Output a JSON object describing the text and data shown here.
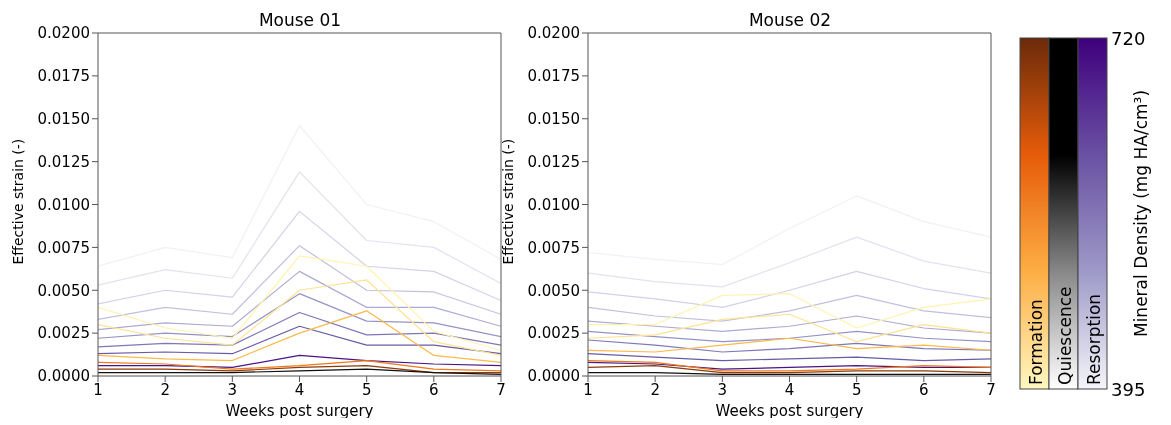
{
  "chart_data": [
    {
      "type": "line",
      "title": "Mouse 01",
      "xlabel": "Weeks post surgery",
      "ylabel": "Effective strain (-)",
      "x": [
        1,
        2,
        3,
        4,
        5,
        6,
        7
      ],
      "xlim": [
        1,
        7
      ],
      "xticks": [
        1,
        2,
        3,
        4,
        5,
        6,
        7
      ],
      "ylim": [
        0,
        0.02
      ],
      "yticks": [
        {
          "value": 0,
          "label": "0.0000"
        },
        {
          "value": 0.0025,
          "label": "0.0025"
        },
        {
          "value": 0.005,
          "label": "0.0050"
        },
        {
          "value": 0.0075,
          "label": "0.0075"
        },
        {
          "value": 0.01,
          "label": "0.0100"
        },
        {
          "value": 0.0125,
          "label": "0.0125"
        },
        {
          "value": 0.015,
          "label": "0.0150"
        },
        {
          "value": 0.0175,
          "label": "0.0175"
        },
        {
          "value": 0.02,
          "label": "0.0200"
        }
      ],
      "marker": "none",
      "line_style": "solid",
      "series": [
        {
          "color": "#f0f0f7",
          "values": [
            0.0064,
            0.0075,
            0.0069,
            0.0146,
            0.01,
            0.009,
            0.0068
          ]
        },
        {
          "color": "#e2e2f0",
          "values": [
            0.0053,
            0.0062,
            0.0057,
            0.0119,
            0.0079,
            0.0075,
            0.0054
          ]
        },
        {
          "color": "#d2d2e8",
          "values": [
            0.0042,
            0.005,
            0.0046,
            0.0096,
            0.0064,
            0.0061,
            0.0044
          ]
        },
        {
          "color": "#c0c0de",
          "values": [
            0.0033,
            0.004,
            0.0036,
            0.0076,
            0.005,
            0.0049,
            0.0036
          ]
        },
        {
          "color": "#acabd3",
          "values": [
            0.0027,
            0.0031,
            0.0029,
            0.0061,
            0.004,
            0.004,
            0.0029
          ]
        },
        {
          "color": "#9593c6",
          "values": [
            0.0022,
            0.0025,
            0.0023,
            0.0048,
            0.0032,
            0.0031,
            0.0023
          ]
        },
        {
          "color": "#7e78b8",
          "values": [
            0.0017,
            0.0019,
            0.0018,
            0.0037,
            0.0024,
            0.0025,
            0.0018
          ]
        },
        {
          "color": "#6a5aa5",
          "values": [
            0.0013,
            0.0014,
            0.0013,
            0.0029,
            0.0018,
            0.0018,
            0.0013
          ]
        },
        {
          "color": "#4a1486",
          "values": [
            0.0006,
            0.0006,
            0.0005,
            0.0012,
            0.0009,
            0.0007,
            0.0006
          ]
        },
        {
          "color": "#fff3b0",
          "values": [
            0.004,
            0.0028,
            0.0022,
            0.007,
            0.0064,
            0.0026,
            0.0015
          ]
        },
        {
          "color": "#fee391",
          "values": [
            0.003,
            0.0022,
            0.0018,
            0.005,
            0.0056,
            0.002,
            0.0012
          ]
        },
        {
          "color": "#fdb94a",
          "values": [
            0.0012,
            0.001,
            0.0009,
            0.0025,
            0.0038,
            0.0012,
            0.0008
          ]
        },
        {
          "color": "#f07818",
          "values": [
            0.0008,
            0.0007,
            0.0004,
            0.0006,
            0.0009,
            0.0004,
            0.0003
          ]
        },
        {
          "color": "#8c3a0a",
          "values": [
            0.0004,
            0.0004,
            0.0003,
            0.0005,
            0.0006,
            0.0002,
            0.0002
          ]
        },
        {
          "color": "#111111",
          "values": [
            0.0002,
            0.0002,
            0.0002,
            0.0003,
            0.0004,
            0.0002,
            0.0001
          ]
        }
      ]
    },
    {
      "type": "line",
      "title": "Mouse 02",
      "xlabel": "Weeks post surgery",
      "ylabel": "Effective strain (-)",
      "x": [
        1,
        2,
        3,
        4,
        5,
        6,
        7
      ],
      "xlim": [
        1,
        7
      ],
      "xticks": [
        1,
        2,
        3,
        4,
        5,
        6,
        7
      ],
      "ylim": [
        0,
        0.02
      ],
      "yticks": [
        {
          "value": 0,
          "label": "0.0000"
        },
        {
          "value": 0.0025,
          "label": "0.0025"
        },
        {
          "value": 0.005,
          "label": "0.0050"
        },
        {
          "value": 0.0075,
          "label": "0.0075"
        },
        {
          "value": 0.01,
          "label": "0.0100"
        },
        {
          "value": 0.0125,
          "label": "0.0125"
        },
        {
          "value": 0.015,
          "label": "0.0150"
        },
        {
          "value": 0.0175,
          "label": "0.0175"
        },
        {
          "value": 0.02,
          "label": "0.0200"
        }
      ],
      "marker": "none",
      "line_style": "solid",
      "clabel": "Mineral Density (mg HA/cm³)",
      "clim": [
        395,
        720
      ],
      "cticks": [
        395,
        720
      ],
      "annotations": [
        "Formation",
        "Quiescence",
        "Resorption"
      ],
      "series": [
        {
          "color": "#f0f0f7",
          "values": [
            0.0072,
            0.0068,
            0.0065,
            0.0086,
            0.0105,
            0.009,
            0.0081
          ]
        },
        {
          "color": "#e2e2f0",
          "values": [
            0.006,
            0.0055,
            0.0052,
            0.0066,
            0.0081,
            0.0067,
            0.006
          ]
        },
        {
          "color": "#d2d2e8",
          "values": [
            0.0049,
            0.0045,
            0.004,
            0.005,
            0.0061,
            0.0051,
            0.0045
          ]
        },
        {
          "color": "#c0c0de",
          "values": [
            0.004,
            0.0035,
            0.0032,
            0.0038,
            0.0047,
            0.0038,
            0.0034
          ]
        },
        {
          "color": "#acabd3",
          "values": [
            0.0032,
            0.0029,
            0.0026,
            0.0029,
            0.0035,
            0.0028,
            0.0025
          ]
        },
        {
          "color": "#9593c6",
          "values": [
            0.0026,
            0.0023,
            0.002,
            0.0022,
            0.0026,
            0.0022,
            0.002
          ]
        },
        {
          "color": "#7e78b8",
          "values": [
            0.0021,
            0.0018,
            0.0014,
            0.0016,
            0.0019,
            0.0016,
            0.0015
          ]
        },
        {
          "color": "#6a5aa5",
          "values": [
            0.0013,
            0.0011,
            0.0009,
            0.001,
            0.0011,
            0.0009,
            0.001
          ]
        },
        {
          "color": "#4a1486",
          "values": [
            0.0008,
            0.0007,
            0.0004,
            0.0005,
            0.0006,
            0.0005,
            0.0005
          ]
        },
        {
          "color": "#fff3b0",
          "values": [
            0.003,
            0.003,
            0.0047,
            0.0048,
            0.0028,
            0.004,
            0.0045
          ]
        },
        {
          "color": "#fee391",
          "values": [
            0.0022,
            0.0024,
            0.0033,
            0.0036,
            0.002,
            0.003,
            0.0025
          ]
        },
        {
          "color": "#fdb94a",
          "values": [
            0.0015,
            0.0014,
            0.0018,
            0.0022,
            0.0016,
            0.0018,
            0.0015
          ]
        },
        {
          "color": "#f07818",
          "values": [
            0.0009,
            0.0008,
            0.0003,
            0.0003,
            0.0004,
            0.0006,
            0.0005
          ]
        },
        {
          "color": "#8c3a0a",
          "values": [
            0.0005,
            0.0006,
            0.0002,
            0.0002,
            0.0003,
            0.0003,
            0.0002
          ]
        },
        {
          "color": "#111111",
          "values": [
            0.0002,
            0.0002,
            0.0001,
            0.0001,
            0.0001,
            0.0001,
            0.0001
          ]
        }
      ]
    }
  ]
}
